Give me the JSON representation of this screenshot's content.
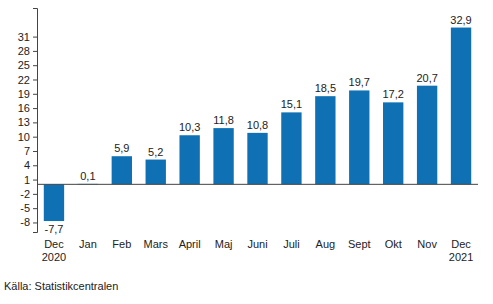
{
  "chart_data": {
    "type": "bar",
    "categories": [
      "Dec\n2020",
      "Jan",
      "Feb",
      "Mars",
      "April",
      "Maj",
      "Juni",
      "Juli",
      "Aug",
      "Sept",
      "Okt",
      "Nov",
      "Dec\n2021"
    ],
    "values": [
      -7.7,
      0.1,
      5.9,
      5.2,
      10.3,
      11.8,
      10.8,
      15.1,
      18.5,
      19.7,
      17.2,
      20.7,
      32.9
    ],
    "value_labels": [
      "-7,7",
      "0,1",
      "5,9",
      "5,2",
      "10,3",
      "11,8",
      "10,8",
      "15,1",
      "18,5",
      "19,7",
      "17,2",
      "20,7",
      "32,9"
    ],
    "color": "#0f71b3",
    "ylim": [
      -10,
      37
    ],
    "yticks": [
      -8,
      -5,
      -2,
      1,
      4,
      7,
      10,
      13,
      16,
      19,
      22,
      25,
      28,
      31
    ],
    "grid": false,
    "data_labels": true,
    "annotations": [
      "Källa: Statistikcentralen"
    ]
  }
}
